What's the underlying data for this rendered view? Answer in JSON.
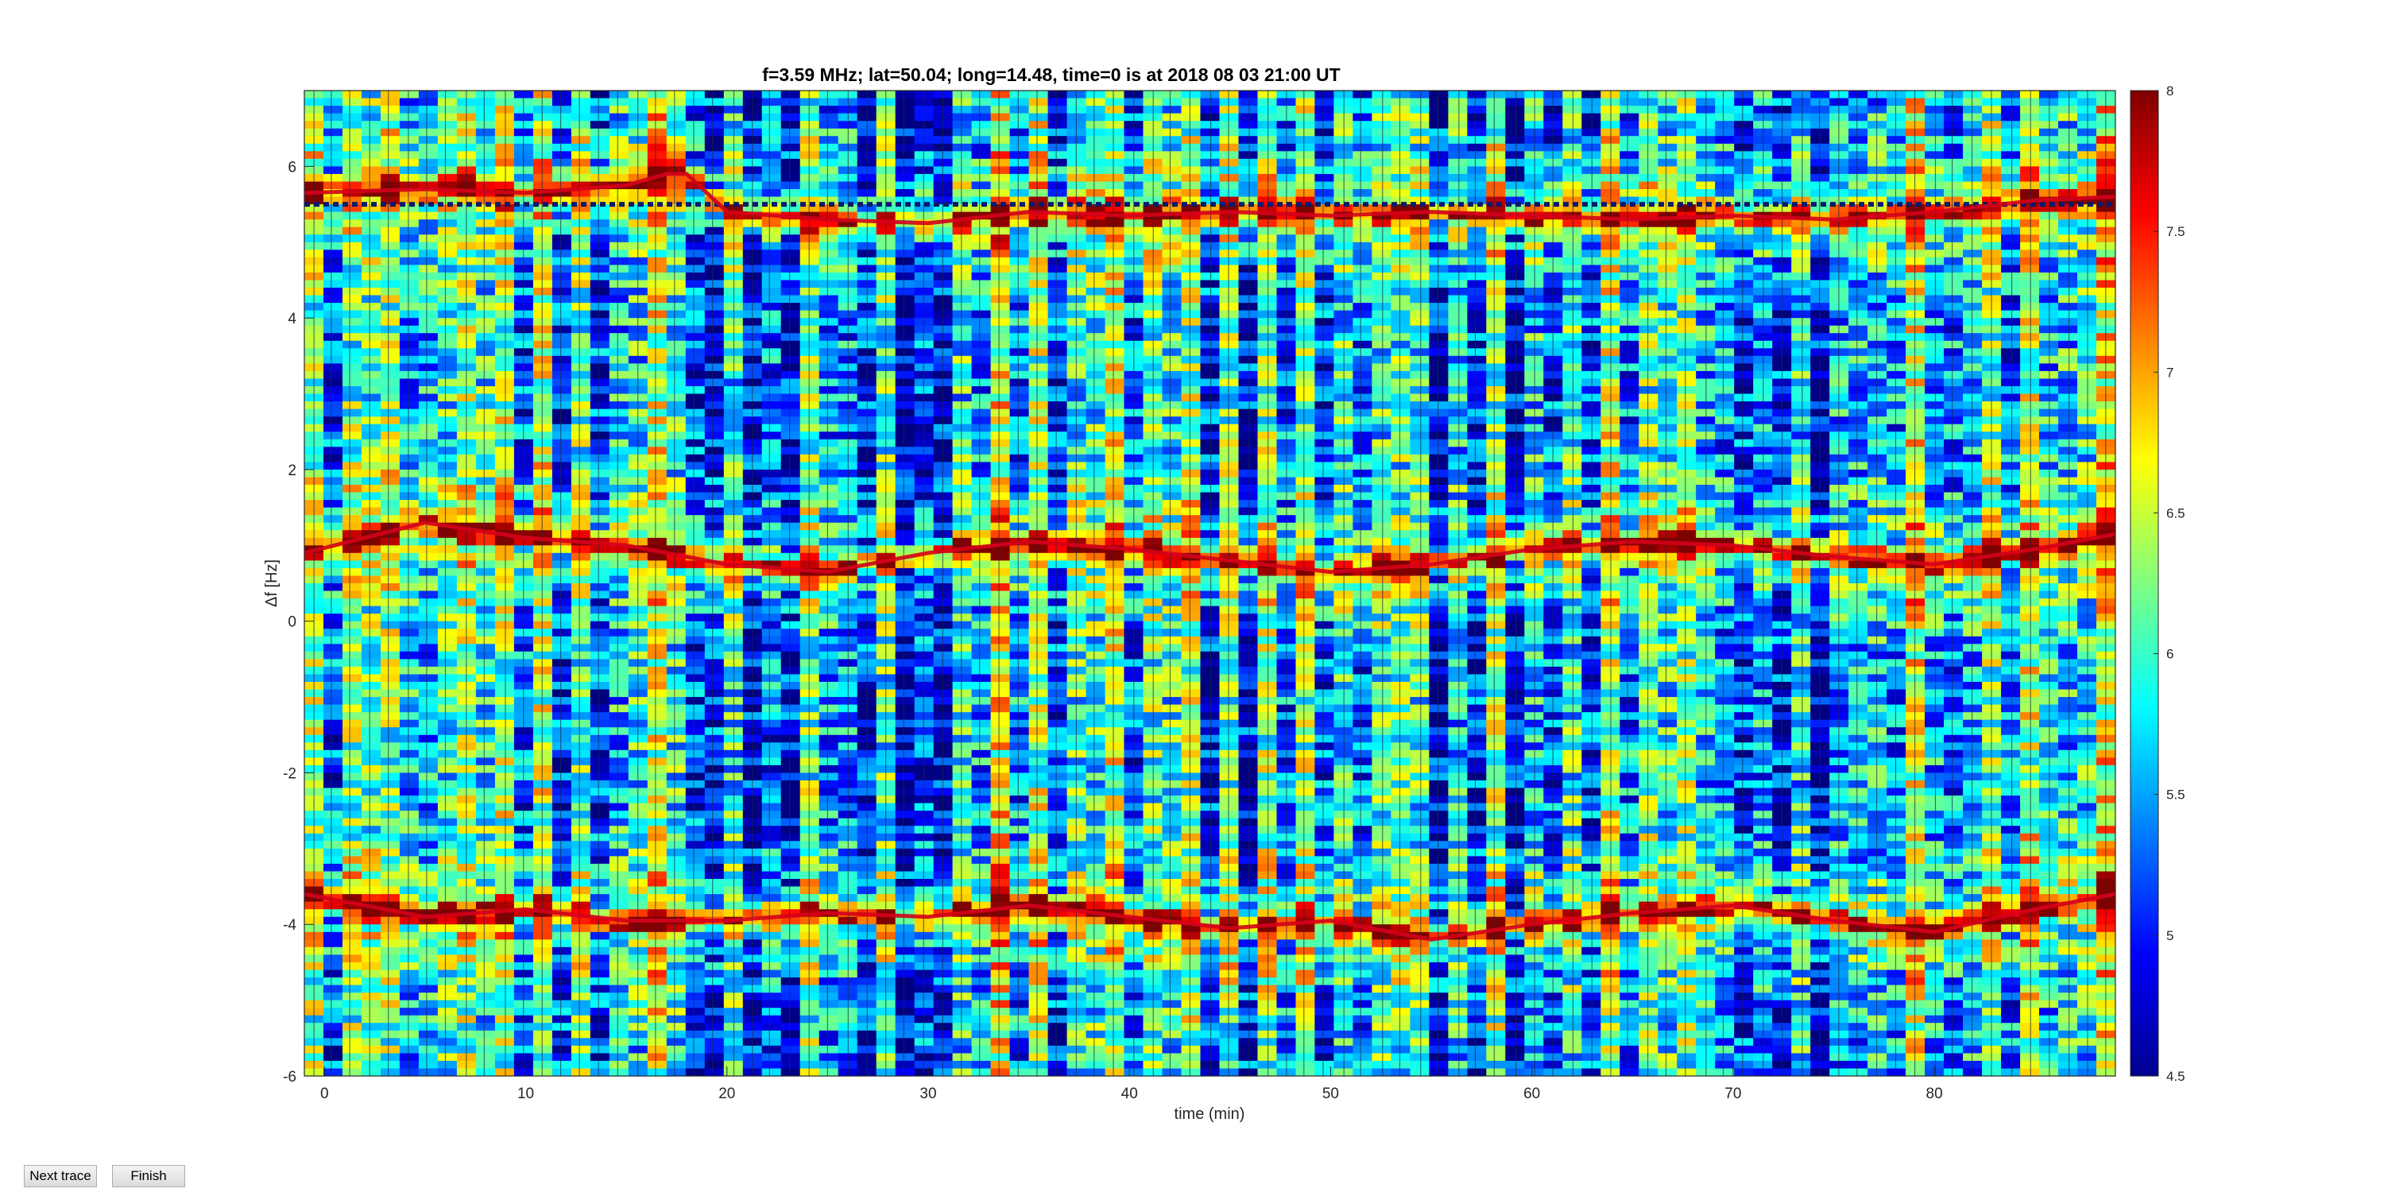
{
  "buttons": {
    "next_label": "Next trace",
    "finish_label": "Finish"
  },
  "chart_data": {
    "type": "heatmap",
    "title": "f=3.59 MHz;  lat=50.04; long=14.48, time=0 is at 2018 08 03 21:00 UT",
    "xlabel": "time (min)",
    "ylabel": "Δf [Hz]",
    "xlim": [
      -1,
      89
    ],
    "ylim": [
      -6,
      7
    ],
    "xticks": [
      0,
      10,
      20,
      30,
      40,
      50,
      60,
      70,
      80
    ],
    "yticks": [
      -6,
      -4,
      -2,
      0,
      2,
      4,
      6
    ],
    "colorbar": {
      "min": 4.5,
      "max": 8,
      "ticks": [
        4.5,
        5,
        5.5,
        6,
        6.5,
        7,
        7.5,
        8
      ],
      "colormap": "jet",
      "location": "right"
    },
    "grid": false,
    "dashed_line_y": 5.5,
    "traces": [
      {
        "name": "upper",
        "t": [
          -1,
          5,
          10,
          15,
          17,
          18,
          20,
          25,
          30,
          35,
          40,
          45,
          50,
          55,
          60,
          65,
          70,
          75,
          80,
          85,
          89
        ],
        "y": [
          5.65,
          5.7,
          5.65,
          5.75,
          5.9,
          5.9,
          5.4,
          5.3,
          5.25,
          5.4,
          5.35,
          5.4,
          5.35,
          5.4,
          5.35,
          5.3,
          5.35,
          5.3,
          5.4,
          5.55,
          5.6
        ]
      },
      {
        "name": "middle",
        "t": [
          -1,
          5,
          10,
          15,
          18,
          20,
          25,
          30,
          35,
          40,
          45,
          50,
          55,
          60,
          65,
          70,
          75,
          80,
          85,
          89
        ],
        "y": [
          0.9,
          1.3,
          1.1,
          1.0,
          0.85,
          0.75,
          0.65,
          0.9,
          1.05,
          0.95,
          0.8,
          0.65,
          0.75,
          0.95,
          1.05,
          1.0,
          0.85,
          0.75,
          0.95,
          1.15
        ]
      },
      {
        "name": "lower",
        "t": [
          -1,
          5,
          10,
          15,
          20,
          25,
          30,
          35,
          40,
          45,
          50,
          55,
          60,
          65,
          70,
          75,
          80,
          85,
          89
        ],
        "y": [
          -3.6,
          -3.9,
          -3.8,
          -3.95,
          -3.95,
          -3.85,
          -3.9,
          -3.75,
          -3.9,
          -4.05,
          -3.95,
          -4.2,
          -4.0,
          -3.85,
          -3.75,
          -3.95,
          -4.1,
          -3.8,
          -3.6
        ]
      }
    ]
  }
}
